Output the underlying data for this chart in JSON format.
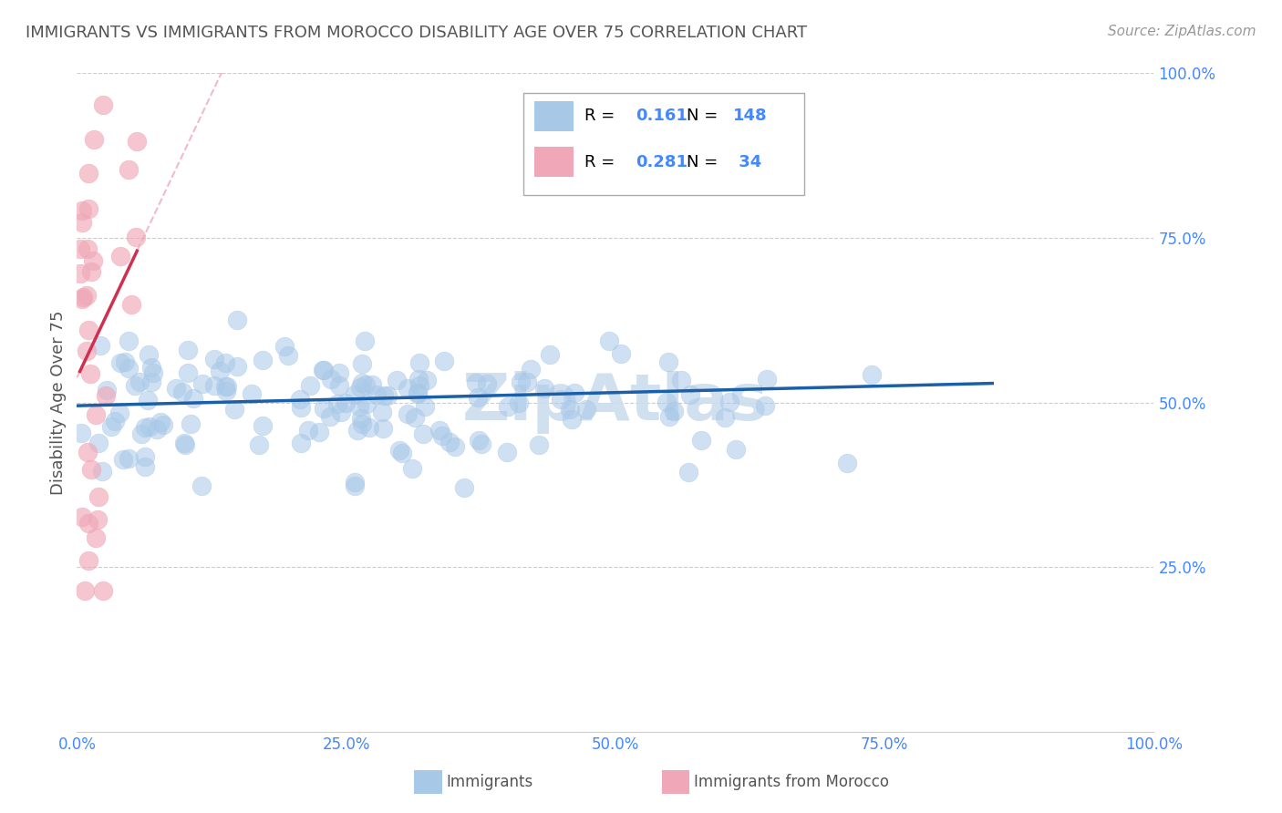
{
  "title": "IMMIGRANTS VS IMMIGRANTS FROM MOROCCO DISABILITY AGE OVER 75 CORRELATION CHART",
  "source": "Source: ZipAtlas.com",
  "ylabel": "Disability Age Over 75",
  "xlim": [
    0,
    1
  ],
  "ylim": [
    0,
    1
  ],
  "xticks": [
    0,
    0.25,
    0.5,
    0.75,
    1.0
  ],
  "yticks": [
    0.25,
    0.5,
    0.75,
    1.0
  ],
  "xticklabels": [
    "0.0%",
    "25.0%",
    "50.0%",
    "75.0%",
    "100.0%"
  ],
  "yticklabels": [
    "25.0%",
    "50.0%",
    "75.0%",
    "100.0%"
  ],
  "blue_color": "#a8c8e8",
  "pink_color": "#f0a8b8",
  "blue_line_color": "#1a5fa8",
  "pink_line_color": "#d03050",
  "pink_dashed_color": "#e8a0b0",
  "R_blue": 0.161,
  "N_blue": 148,
  "R_pink": 0.281,
  "N_pink": 34,
  "legend_label_blue": "Immigrants",
  "legend_label_pink": "Immigrants from Morocco",
  "background_color": "#ffffff",
  "grid_color": "#cccccc",
  "title_color": "#555555",
  "tick_color": "#4488ff",
  "watermark_color": "#ccddee",
  "seed_blue": 12,
  "seed_pink": 99
}
